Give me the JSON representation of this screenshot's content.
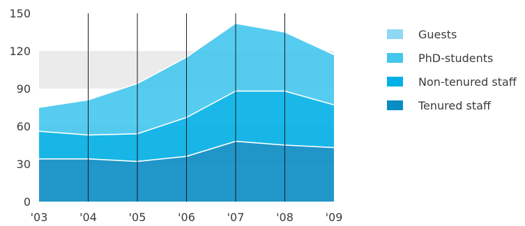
{
  "chart_data": {
    "type": "area",
    "stacked": true,
    "categories": [
      "'03",
      "'04",
      "'05",
      "'06",
      "'07",
      "'08",
      "'09"
    ],
    "ylim": [
      0,
      150
    ],
    "yticks": [
      0,
      30,
      60,
      90,
      120,
      150
    ],
    "grid": "alternating horizontal bands",
    "legend_position": "right",
    "series": [
      {
        "name": "Tenured staff",
        "color": "#0a8cc4",
        "values": [
          34,
          34,
          32,
          36,
          48,
          45,
          43
        ]
      },
      {
        "name": "Non-tenured staff",
        "color": "#00b0e6",
        "values": [
          22,
          19,
          22,
          31,
          40,
          43,
          34
        ]
      },
      {
        "name": "PhD-students",
        "color": "#44c6ee",
        "values": [
          19,
          28,
          40,
          48,
          54,
          47,
          40
        ]
      },
      {
        "name": "Guests",
        "color": "#8fd8f4",
        "values": [
          0,
          0,
          0,
          0,
          0,
          0,
          0
        ]
      }
    ],
    "legend": [
      "Guests",
      "PhD-students",
      "Non-tenured staff",
      "Tenured staff"
    ]
  }
}
